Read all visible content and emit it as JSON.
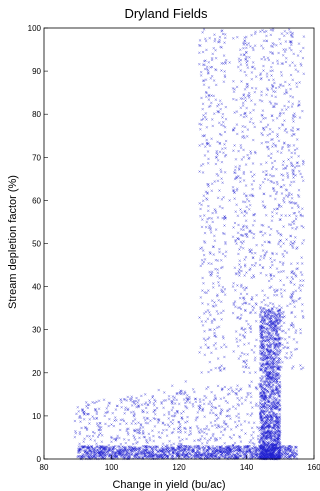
{
  "chart_data": {
    "type": "scatter",
    "title": "Dryland Fields",
    "xlabel": "Change in yield (bu/ac)",
    "ylabel": "Stream depletion factor (%)",
    "xlim": [
      80,
      160
    ],
    "ylim": [
      0,
      100
    ],
    "x_ticks": [
      80,
      100,
      120,
      140,
      160
    ],
    "y_ticks": [
      0,
      10,
      20,
      30,
      40,
      50,
      60,
      70,
      80,
      90,
      100
    ],
    "grid": false,
    "legend": "none",
    "marker_color": "#1f1fd0",
    "marker": "x",
    "approx_point_count": 6000,
    "series": [
      {
        "clusters": [
          {
            "region": "upper band",
            "x_range": [
              125,
              155
            ],
            "y_range": [
              20,
              100
            ],
            "density": "medium"
          },
          {
            "region": "dense band",
            "x_range": [
              144,
              150
            ],
            "y_range": [
              0,
              35
            ],
            "density": "high"
          },
          {
            "region": "lower fan",
            "x_range": [
              89,
              145
            ],
            "y_range": [
              0,
              18
            ],
            "density": "sparse"
          },
          {
            "region": "baseline",
            "x_range": [
              90,
              155
            ],
            "y_range": [
              0,
              3
            ],
            "density": "medium"
          }
        ],
        "points": [
          [
            127,
            99
          ],
          [
            126,
            96
          ],
          [
            130,
            94
          ],
          [
            131,
            93
          ],
          [
            135,
            92
          ],
          [
            140,
            92
          ],
          [
            142,
            91
          ],
          [
            146,
            97
          ],
          [
            151,
            95
          ],
          [
            154,
            94
          ],
          [
            157,
            98
          ],
          [
            128,
            88
          ],
          [
            136,
            86
          ],
          [
            148,
            88
          ],
          [
            152,
            85
          ],
          [
            133,
            80
          ],
          [
            139,
            82
          ],
          [
            145,
            79
          ],
          [
            150,
            80
          ],
          [
            127,
            75
          ],
          [
            142,
            74
          ],
          [
            155,
            72
          ],
          [
            131,
            70
          ],
          [
            138,
            68
          ],
          [
            146,
            66
          ],
          [
            152,
            68
          ],
          [
            128,
            62
          ],
          [
            135,
            60
          ],
          [
            142,
            61
          ],
          [
            149,
            58
          ],
          [
            154,
            57
          ],
          [
            130,
            55
          ],
          [
            140,
            54
          ],
          [
            147,
            52
          ],
          [
            132,
            48
          ],
          [
            138,
            46
          ],
          [
            144,
            45
          ],
          [
            151,
            47
          ],
          [
            127,
            42
          ],
          [
            136,
            40
          ],
          [
            143,
            38
          ],
          [
            149,
            39
          ],
          [
            153,
            36
          ],
          [
            129,
            34
          ],
          [
            140,
            32
          ],
          [
            146,
            30
          ],
          [
            150,
            28
          ],
          [
            134,
            26
          ],
          [
            145,
            25
          ],
          [
            148,
            22
          ],
          [
            141,
            20
          ],
          [
            146,
            18
          ],
          [
            147,
            15
          ],
          [
            145,
            12
          ],
          [
            146,
            9
          ],
          [
            147,
            6
          ],
          [
            145,
            4
          ],
          [
            146,
            2
          ],
          [
            144,
            1
          ],
          [
            148,
            3
          ],
          [
            90,
            12
          ],
          [
            92,
            11
          ],
          [
            95,
            13
          ],
          [
            98,
            10
          ],
          [
            100,
            8
          ],
          [
            103,
            12
          ],
          [
            106,
            14
          ],
          [
            110,
            15
          ],
          [
            114,
            16
          ],
          [
            118,
            17
          ],
          [
            122,
            18
          ],
          [
            95,
            6
          ],
          [
            100,
            4
          ],
          [
            105,
            7
          ],
          [
            110,
            9
          ],
          [
            115,
            6
          ],
          [
            120,
            5
          ],
          [
            125,
            9
          ],
          [
            130,
            12
          ],
          [
            135,
            10
          ],
          [
            98,
            2
          ],
          [
            104,
            1
          ],
          [
            110,
            2
          ],
          [
            116,
            1
          ],
          [
            121,
            2
          ],
          [
            128,
            3
          ],
          [
            134,
            2
          ],
          [
            140,
            3
          ],
          [
            150,
            2
          ],
          [
            153,
            3
          ],
          [
            155,
            1
          ]
        ]
      }
    ]
  }
}
